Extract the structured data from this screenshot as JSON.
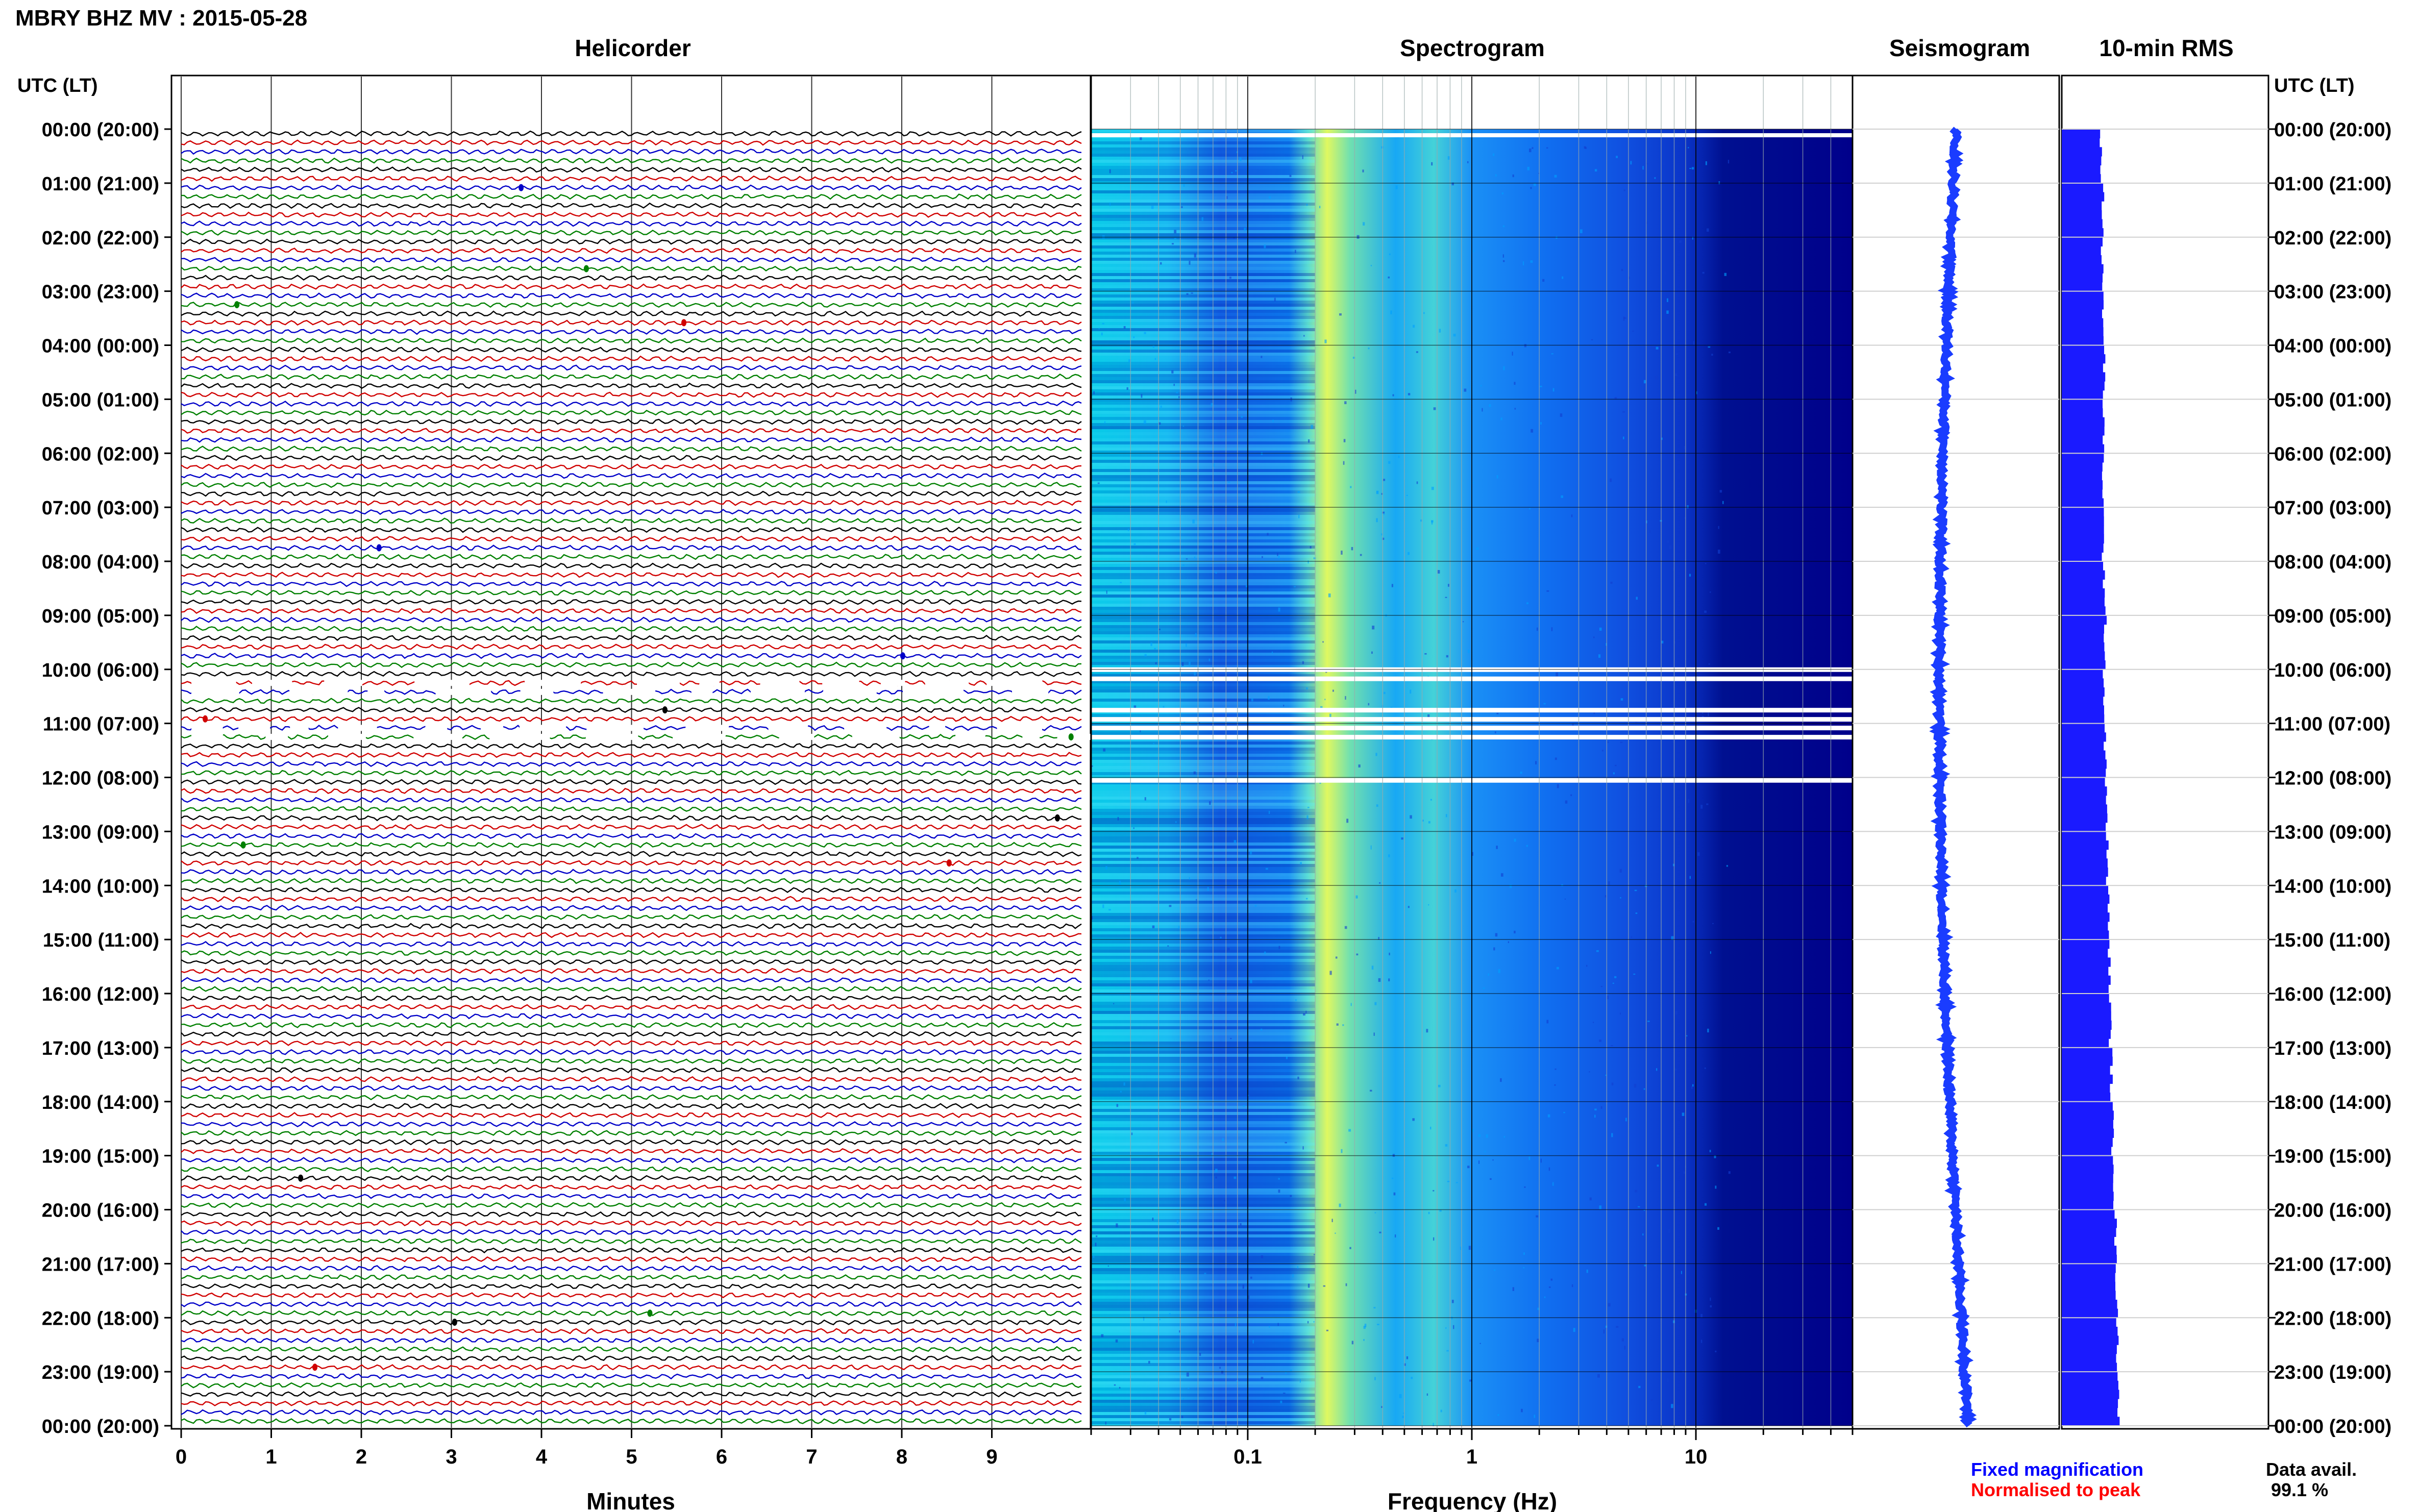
{
  "page": {
    "title": "MBRY BHZ MV : 2015-05-28",
    "panel_titles": [
      "Helicorder",
      "Spectrogram",
      "Seismogram",
      "10-min RMS"
    ],
    "left_axis_header": "UTC (LT)",
    "right_axis_header": "UTC (LT)",
    "x_labels": {
      "helicorder": "Minutes",
      "spectrogram": "Frequency (Hz)"
    },
    "legend": {
      "fixed": "Fixed magnification",
      "normalised": "Normalised to peak"
    },
    "data_avail_label": "Data avail.",
    "data_avail_value": "99.1 %",
    "colors": {
      "trace_cycle": [
        "#000000",
        "#d00000",
        "#0000c8",
        "#008000"
      ],
      "seismogram": "#1a3cff",
      "rms": "#1a1aff",
      "fixed_legend": "#0000ff",
      "normalised_legend": "#ff0000",
      "spectrogram_low": "#00008b",
      "spectrogram_high": "#ffff40"
    }
  },
  "chart_data": [
    {
      "type": "line",
      "name": "helicorder",
      "title": "Helicorder",
      "xlabel": "Minutes",
      "x_ticks": [
        "0",
        "1",
        "2",
        "3",
        "4",
        "5",
        "6",
        "7",
        "8",
        "9"
      ],
      "xlim": [
        0,
        10
      ],
      "rows_per_hour": 6,
      "hours": 24,
      "y_tick_labels": [
        "00:00 (20:00)",
        "01:00 (21:00)",
        "02:00 (22:00)",
        "03:00 (23:00)",
        "04:00 (00:00)",
        "05:00 (01:00)",
        "06:00 (02:00)",
        "07:00 (03:00)",
        "08:00 (04:00)",
        "09:00 (05:00)",
        "10:00 (06:00)",
        "11:00 (07:00)",
        "12:00 (08:00)",
        "13:00 (09:00)",
        "14:00 (10:00)",
        "15:00 (11:00)",
        "16:00 (12:00)",
        "17:00 (13:00)",
        "18:00 (14:00)",
        "19:00 (15:00)",
        "20:00 (16:00)",
        "21:00 (17:00)",
        "22:00 (18:00)",
        "23:00 (19:00)",
        "00:00 (20:00)"
      ],
      "gap_rows": [
        61,
        62,
        66,
        67
      ]
    },
    {
      "type": "heatmap",
      "name": "spectrogram",
      "title": "Spectrogram",
      "xlabel": "Frequency (Hz)",
      "x_scale": "log",
      "xlim": [
        0.02,
        50
      ],
      "x_ticks": [
        {
          "v": 0.1,
          "label": "0.1"
        },
        {
          "v": 1,
          "label": "1"
        },
        {
          "v": 10,
          "label": "10"
        }
      ],
      "peak_band_hz": [
        0.2,
        0.5
      ],
      "gap_hours": [
        10.0,
        10.17,
        10.75,
        10.92,
        11.08,
        11.25,
        12.05
      ]
    },
    {
      "type": "line",
      "name": "seismogram",
      "title": "Seismogram"
    },
    {
      "type": "bar",
      "name": "rms",
      "title": "10-min RMS",
      "hour_levels": [
        0.38,
        0.4,
        0.39,
        0.4,
        0.41,
        0.4,
        0.4,
        0.4,
        0.41,
        0.42,
        0.41,
        0.42,
        0.43,
        0.44,
        0.45,
        0.46,
        0.47,
        0.48,
        0.49,
        0.51,
        0.52,
        0.53,
        0.54,
        0.55
      ]
    }
  ]
}
